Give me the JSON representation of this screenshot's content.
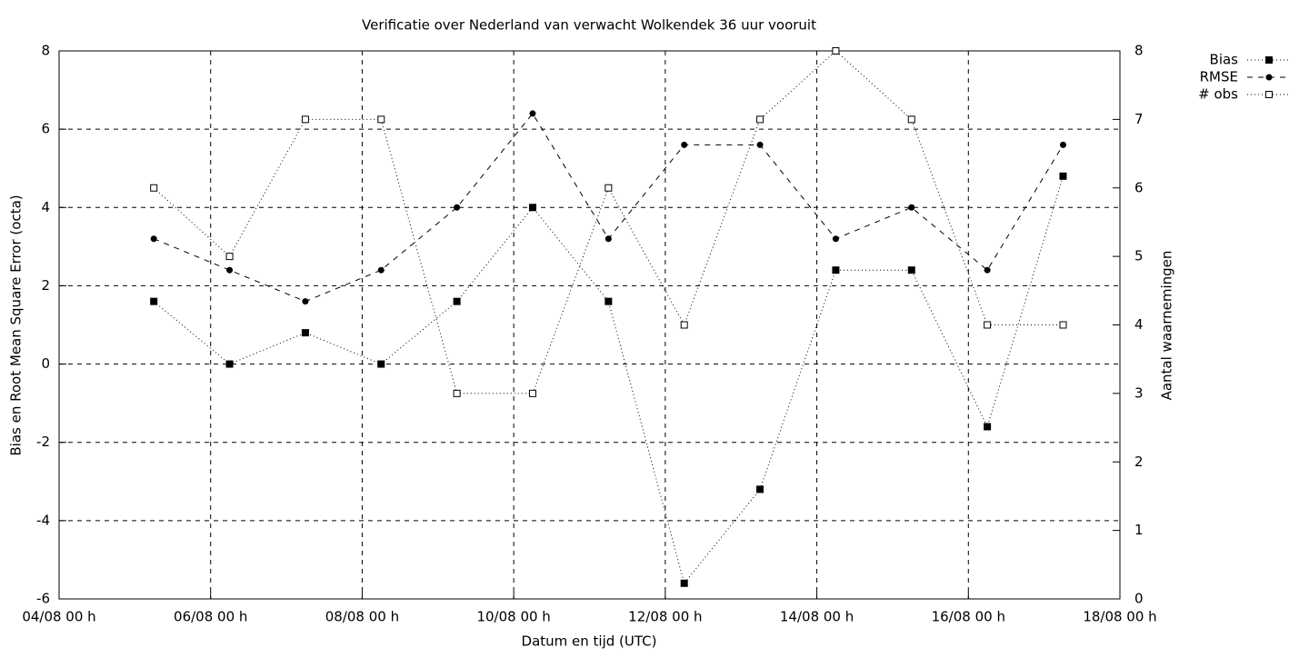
{
  "chart_data": {
    "type": "line",
    "title": "Verificatie over Nederland van verwacht Wolkendek 36 uur vooruit",
    "x_label": "Datum en tijd (UTC)",
    "y_label": "Bias en Root Mean Square Error (octa)",
    "y2_label": "Aantal waarnemingen",
    "x": [
      "05/08 06 h",
      "06/08 06 h",
      "07/08 06 h",
      "08/08 06 h",
      "09/08 06 h",
      "10/08 06 h",
      "11/08 06 h",
      "12/08 06 h",
      "13/08 06 h",
      "14/08 06 h",
      "15/08 06 h",
      "16/08 06 h",
      "17/08 06 h"
    ],
    "xlim": [
      "04/08 00 h",
      "18/08 00 h"
    ],
    "xticks": [
      "04/08 00 h",
      "06/08 00 h",
      "08/08 00 h",
      "10/08 00 h",
      "12/08 00 h",
      "14/08 00 h",
      "16/08 00 h",
      "18/08 00 h"
    ],
    "ylim": [
      -6,
      8
    ],
    "yticks": [
      -6,
      -4,
      -2,
      0,
      2,
      4,
      6,
      8
    ],
    "y2lim": [
      0,
      8
    ],
    "y2ticks": [
      0,
      1,
      2,
      3,
      4,
      5,
      6,
      7,
      8
    ],
    "grid": true,
    "legend": "top-right",
    "series": [
      {
        "name": "Bias",
        "color": "#000000",
        "line_style": "dotted",
        "marker": "filled-square",
        "values": [
          1.6,
          0,
          0.8,
          0,
          1.6,
          4,
          1.6,
          -5.6,
          -3.2,
          2.4,
          2.4,
          -1.6,
          4.8
        ]
      },
      {
        "name": "RMSE",
        "color": "#000000",
        "line_style": "dashed",
        "marker": "filled-circle",
        "values": [
          3.2,
          2.4,
          1.6,
          2.4,
          4,
          6.4,
          3.2,
          5.6,
          5.6,
          3.2,
          4,
          2.4,
          5.6
        ]
      },
      {
        "name": "# obs",
        "color": "#000000",
        "line_style": "dotted",
        "marker": "open-square",
        "axis": "y2",
        "values": [
          6,
          5,
          7,
          7,
          3,
          3,
          6,
          4,
          7,
          8,
          7,
          4,
          4
        ]
      }
    ]
  }
}
